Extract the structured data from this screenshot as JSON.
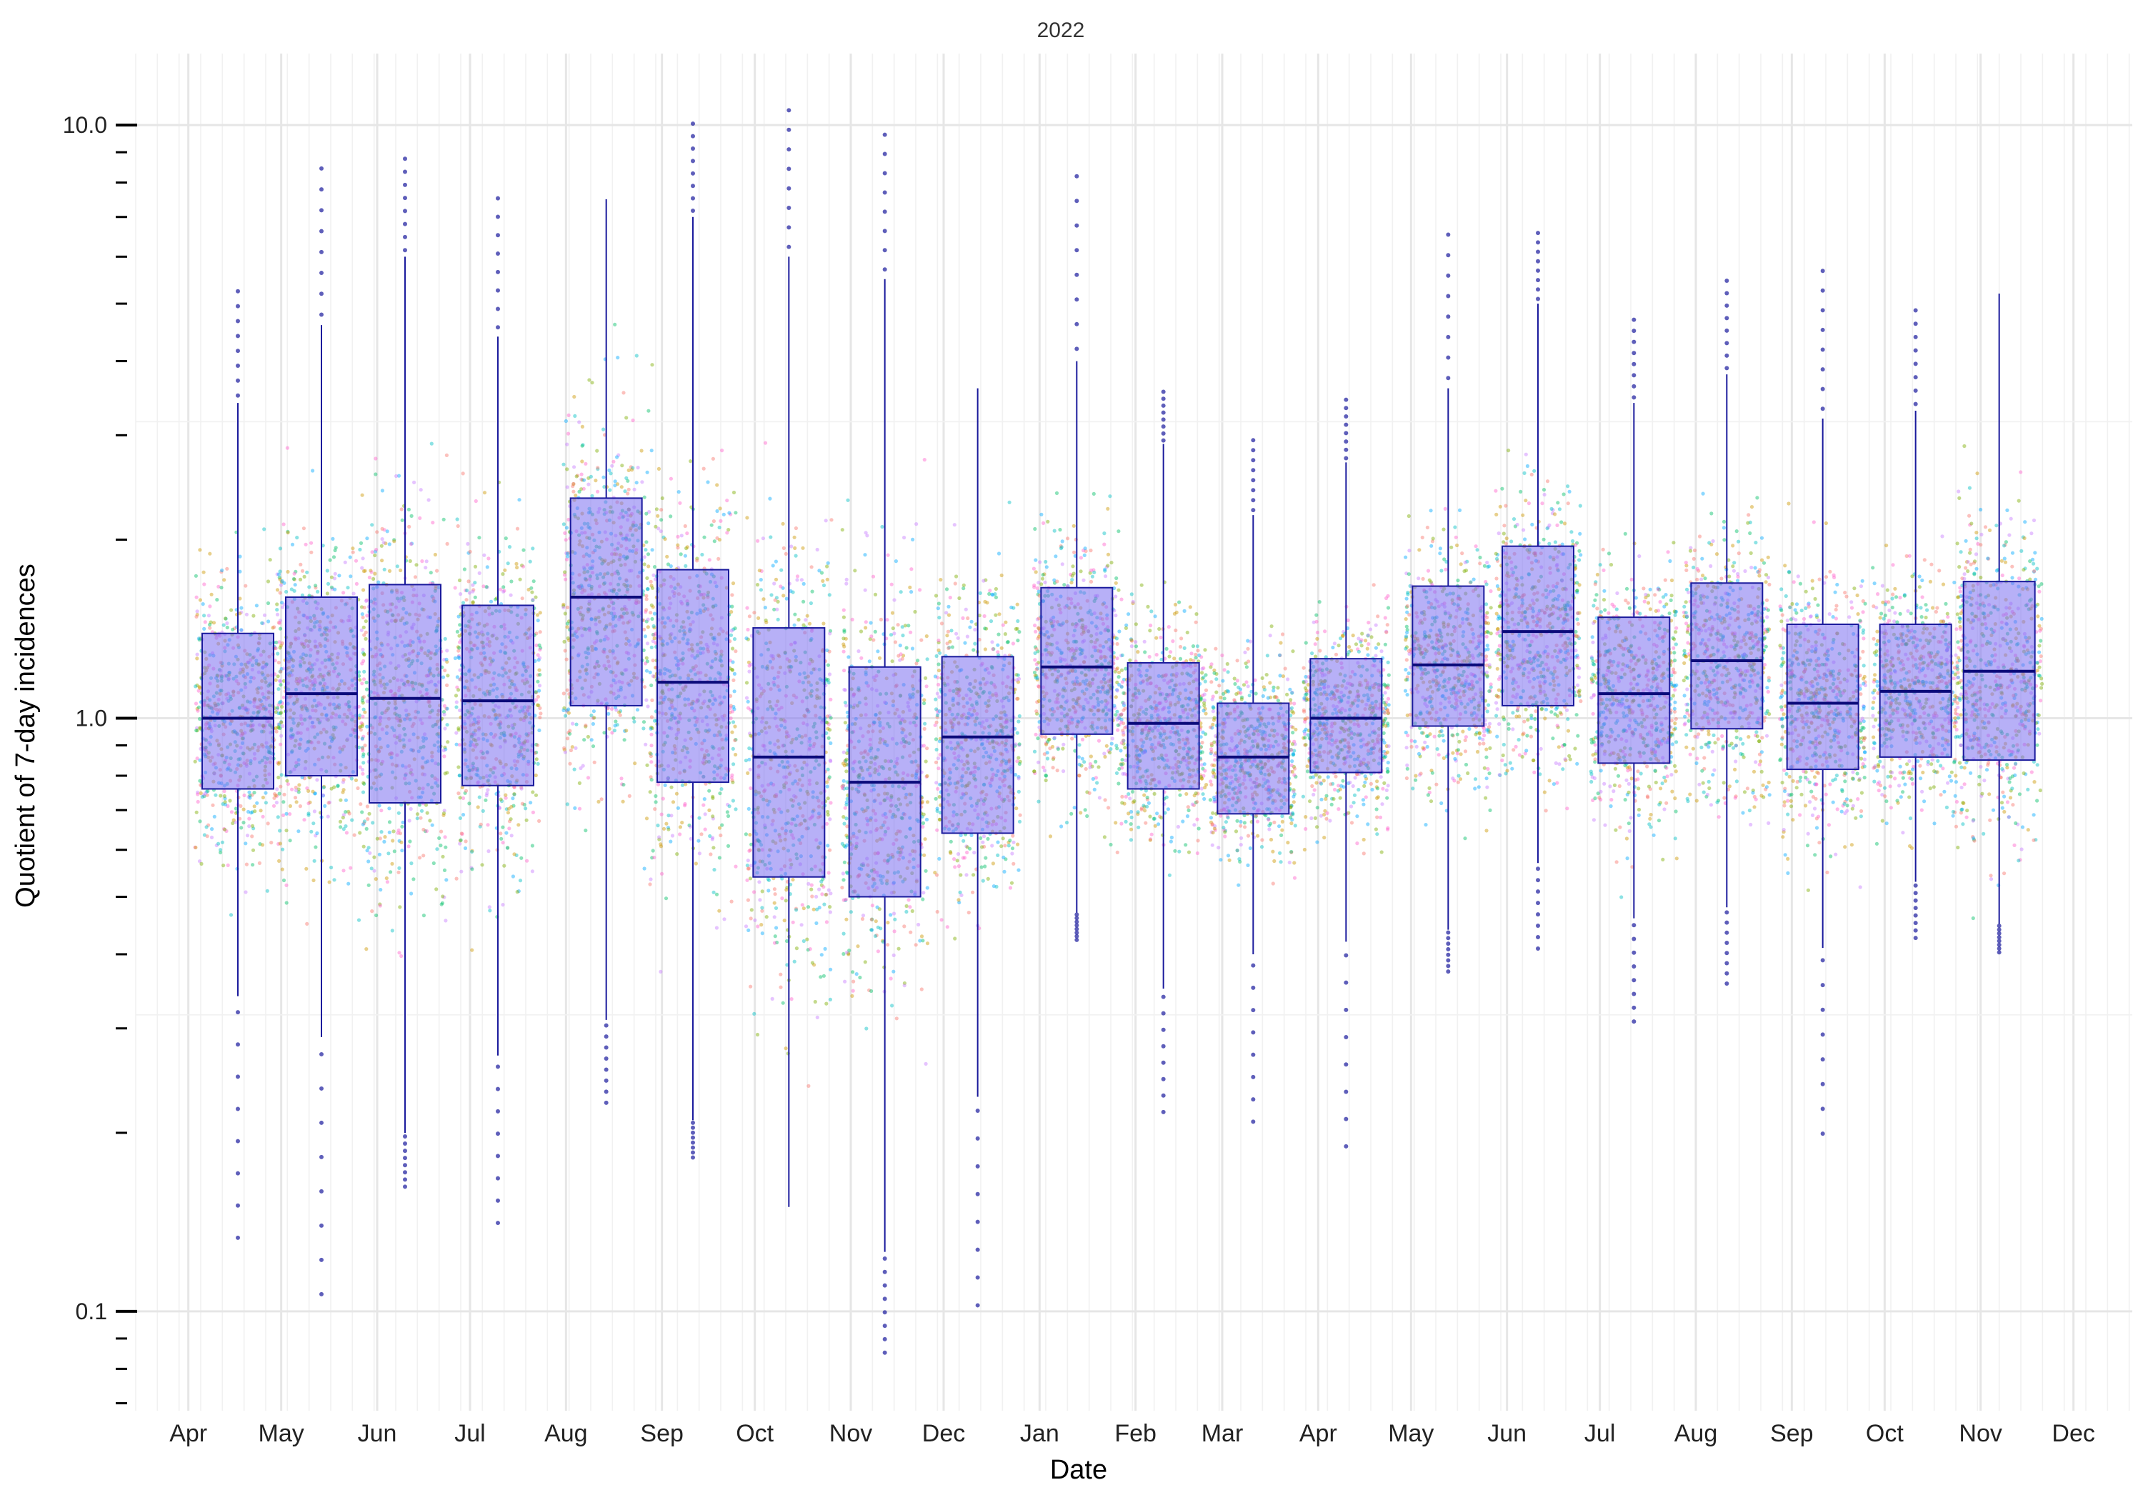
{
  "chart_data": {
    "type": "box",
    "title": "2022",
    "xlabel": "Date",
    "ylabel": "Quotient of 7-day incidences",
    "y_scale": "log10",
    "ylim": [
      0.068,
      13.2
    ],
    "y_ticks": [
      0.1,
      1.0,
      10.0
    ],
    "y_tick_labels": [
      "0.1",
      "1.0",
      "10.0"
    ],
    "x_range": [
      "2022-03-15",
      "2023-12-20"
    ],
    "x_ticks": [
      {
        "date": "2022-04-01",
        "label": "Apr"
      },
      {
        "date": "2022-05-01",
        "label": "May"
      },
      {
        "date": "2022-06-01",
        "label": "Jun"
      },
      {
        "date": "2022-07-01",
        "label": "Jul"
      },
      {
        "date": "2022-08-01",
        "label": "Aug"
      },
      {
        "date": "2022-09-01",
        "label": "Sep"
      },
      {
        "date": "2022-10-01",
        "label": "Oct"
      },
      {
        "date": "2022-11-01",
        "label": "Nov"
      },
      {
        "date": "2022-12-01",
        "label": "Dec"
      },
      {
        "date": "2023-01-01",
        "label": "Jan"
      },
      {
        "date": "2023-02-01",
        "label": "Feb"
      },
      {
        "date": "2023-03-01",
        "label": "Mar"
      },
      {
        "date": "2023-04-01",
        "label": "Apr"
      },
      {
        "date": "2023-05-01",
        "label": "May"
      },
      {
        "date": "2023-06-01",
        "label": "Jun"
      },
      {
        "date": "2023-07-01",
        "label": "Jul"
      },
      {
        "date": "2023-08-01",
        "label": "Aug"
      },
      {
        "date": "2023-09-01",
        "label": "Sep"
      },
      {
        "date": "2023-10-01",
        "label": "Oct"
      },
      {
        "date": "2023-11-01",
        "label": "Nov"
      },
      {
        "date": "2023-12-01",
        "label": "Dec"
      }
    ],
    "grid": true,
    "legend": "none",
    "box_fill": "#7b6ff0",
    "box_stroke": "#1a1a9c",
    "point_colors": [
      "#f8766d",
      "#cd9600",
      "#7cae00",
      "#00be67",
      "#00bfc4",
      "#00a9ff",
      "#c77cff",
      "#ff61cc"
    ],
    "boxes": [
      {
        "date": "2022-04-17",
        "q1": 0.76,
        "median": 1.0,
        "q3": 1.39,
        "lower_whisker": 0.34,
        "upper_whisker": 3.4,
        "out_min": 0.125,
        "out_max": 5.4
      },
      {
        "date": "2022-05-14",
        "q1": 0.8,
        "median": 1.1,
        "q3": 1.6,
        "lower_whisker": 0.29,
        "upper_whisker": 4.6,
        "out_min": 0.1,
        "out_max": 8.8
      },
      {
        "date": "2022-06-10",
        "q1": 0.72,
        "median": 1.08,
        "q3": 1.68,
        "lower_whisker": 0.2,
        "upper_whisker": 6.0,
        "out_min": 0.16,
        "out_max": 9.0
      },
      {
        "date": "2022-07-10",
        "q1": 0.77,
        "median": 1.07,
        "q3": 1.55,
        "lower_whisker": 0.27,
        "upper_whisker": 4.4,
        "out_min": 0.135,
        "out_max": 7.8
      },
      {
        "date": "2022-08-14",
        "q1": 1.05,
        "median": 1.6,
        "q3": 2.35,
        "lower_whisker": 0.31,
        "upper_whisker": 7.5,
        "out_min": 0.22,
        "out_max": 7.5
      },
      {
        "date": "2022-09-11",
        "q1": 0.78,
        "median": 1.15,
        "q3": 1.78,
        "lower_whisker": 0.21,
        "upper_whisker": 7.0,
        "out_min": 0.18,
        "out_max": 10.3
      },
      {
        "date": "2022-10-12",
        "q1": 0.54,
        "median": 0.86,
        "q3": 1.42,
        "lower_whisker": 0.15,
        "upper_whisker": 6.0,
        "out_min": 0.15,
        "out_max": 11.0
      },
      {
        "date": "2022-11-12",
        "q1": 0.5,
        "median": 0.78,
        "q3": 1.22,
        "lower_whisker": 0.126,
        "upper_whisker": 5.5,
        "out_min": 0.083,
        "out_max": 10.0
      },
      {
        "date": "2022-12-12",
        "q1": 0.64,
        "median": 0.93,
        "q3": 1.27,
        "lower_whisker": 0.23,
        "upper_whisker": 3.6,
        "out_min": 0.097,
        "out_max": 3.6
      },
      {
        "date": "2023-01-13",
        "q1": 0.94,
        "median": 1.22,
        "q3": 1.66,
        "lower_whisker": 0.47,
        "upper_whisker": 4.0,
        "out_min": 0.42,
        "out_max": 8.6
      },
      {
        "date": "2023-02-10",
        "q1": 0.76,
        "median": 0.98,
        "q3": 1.24,
        "lower_whisker": 0.35,
        "upper_whisker": 2.9,
        "out_min": 0.21,
        "out_max": 3.6
      },
      {
        "date": "2023-03-11",
        "q1": 0.69,
        "median": 0.86,
        "q3": 1.06,
        "lower_whisker": 0.4,
        "upper_whisker": 2.2,
        "out_min": 0.2,
        "out_max": 3.0
      },
      {
        "date": "2023-04-10",
        "q1": 0.81,
        "median": 1.0,
        "q3": 1.26,
        "lower_whisker": 0.42,
        "upper_whisker": 2.7,
        "out_min": 0.18,
        "out_max": 3.5
      },
      {
        "date": "2023-05-13",
        "q1": 0.97,
        "median": 1.23,
        "q3": 1.67,
        "lower_whisker": 0.44,
        "upper_whisker": 3.6,
        "out_min": 0.37,
        "out_max": 6.8
      },
      {
        "date": "2023-06-11",
        "q1": 1.05,
        "median": 1.4,
        "q3": 1.95,
        "lower_whisker": 0.57,
        "upper_whisker": 5.0,
        "out_min": 0.4,
        "out_max": 6.7
      },
      {
        "date": "2023-07-12",
        "q1": 0.84,
        "median": 1.1,
        "q3": 1.48,
        "lower_whisker": 0.46,
        "upper_whisker": 3.4,
        "out_min": 0.3,
        "out_max": 4.8
      },
      {
        "date": "2023-08-11",
        "q1": 0.96,
        "median": 1.25,
        "q3": 1.69,
        "lower_whisker": 0.48,
        "upper_whisker": 3.8,
        "out_min": 0.35,
        "out_max": 5.6
      },
      {
        "date": "2023-09-11",
        "q1": 0.82,
        "median": 1.06,
        "q3": 1.44,
        "lower_whisker": 0.41,
        "upper_whisker": 3.2,
        "out_min": 0.19,
        "out_max": 5.9
      },
      {
        "date": "2023-10-11",
        "q1": 0.86,
        "median": 1.11,
        "q3": 1.44,
        "lower_whisker": 0.53,
        "upper_whisker": 3.3,
        "out_min": 0.42,
        "out_max": 5.0
      },
      {
        "date": "2023-11-07",
        "q1": 0.85,
        "median": 1.2,
        "q3": 1.7,
        "lower_whisker": 0.45,
        "upper_whisker": 5.2,
        "out_min": 0.4,
        "out_max": 5.2
      }
    ]
  }
}
